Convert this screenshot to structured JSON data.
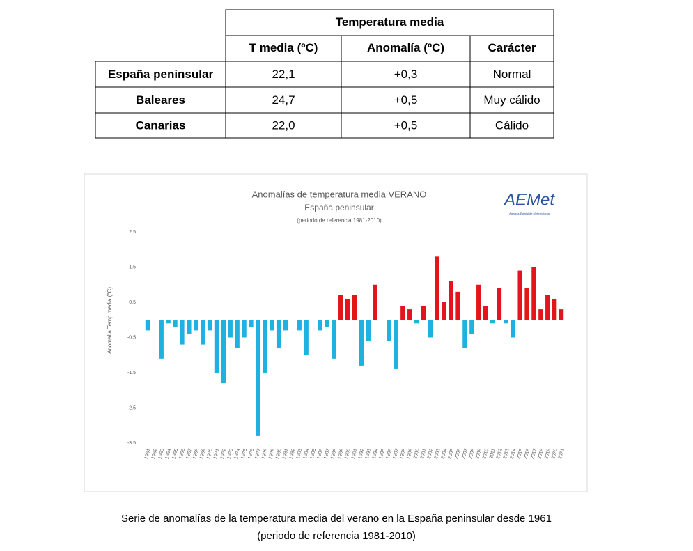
{
  "table": {
    "title": "Temperatura media",
    "columns": [
      "T media (ºC)",
      "Anomalía (ºC)",
      "Carácter"
    ],
    "rows": [
      [
        "España peninsular",
        "22,1",
        "+0,3",
        "Normal"
      ],
      [
        "Baleares",
        "24,7",
        "+0,5",
        "Muy cálido"
      ],
      [
        "Canarias",
        "22,0",
        "+0,5",
        "Cálido"
      ]
    ]
  },
  "chart_data": {
    "type": "bar",
    "title": "Anomalías de temperatura media VERANO",
    "subtitle": "España peninsular",
    "note": "(periodo de referencia 1981-2010)",
    "logo": "AEMet",
    "logo_subtitle": "Agencia Estatal de Meteorología",
    "y_label": "Anomalía Temp media (°C)",
    "categories": [
      "1961",
      "1962",
      "1963",
      "1964",
      "1965",
      "1966",
      "1967",
      "1968",
      "1969",
      "1970",
      "1971",
      "1972",
      "1973",
      "1974",
      "1975",
      "1976",
      "1977",
      "1978",
      "1979",
      "1980",
      "1981",
      "1982",
      "1983",
      "1984",
      "1985",
      "1986",
      "1987",
      "1988",
      "1989",
      "1990",
      "1991",
      "1992",
      "1993",
      "1994",
      "1995",
      "1996",
      "1997",
      "1998",
      "1999",
      "2000",
      "2001",
      "2002",
      "2003",
      "2004",
      "2005",
      "2006",
      "2007",
      "2008",
      "2009",
      "2010",
      "2011",
      "2012",
      "2013",
      "2014",
      "2015",
      "2016",
      "2017",
      "2018",
      "2019",
      "2020",
      "2021"
    ],
    "values": [
      -0.3,
      0,
      -1.1,
      -0.1,
      -0.2,
      -0.7,
      -0.4,
      -0.3,
      -0.7,
      -0.3,
      -1.5,
      -1.8,
      -0.5,
      -0.8,
      -0.5,
      -0.2,
      -3.3,
      -1.5,
      -0.3,
      -0.8,
      -0.3,
      0,
      -0.3,
      -1.0,
      0,
      -0.3,
      -0.2,
      -1.1,
      0.7,
      0.6,
      0.7,
      -1.3,
      -0.6,
      1.0,
      0,
      -0.6,
      -1.4,
      0.4,
      0.3,
      -0.1,
      0.4,
      -0.5,
      1.8,
      0.5,
      1.1,
      0.8,
      -0.8,
      -0.4,
      1.0,
      0.4,
      -0.1,
      0.9,
      -0.1,
      -0.5,
      1.4,
      0.9,
      1.5,
      0.3,
      0.7,
      0.6,
      0.3
    ],
    "positive_color": "#e3141b",
    "negative_color": "#1fb1e0",
    "ylim": [
      -3.5,
      2.5
    ],
    "yticks": [
      2.5,
      1.5,
      0.5,
      -0.5,
      -1.5,
      -2.5,
      -3.5
    ],
    "grid": false
  },
  "caption": [
    "Serie de anomalías de la temperatura media del verano en la España peninsular desde 1961",
    "(periodo de referencia 1981-2010)"
  ]
}
